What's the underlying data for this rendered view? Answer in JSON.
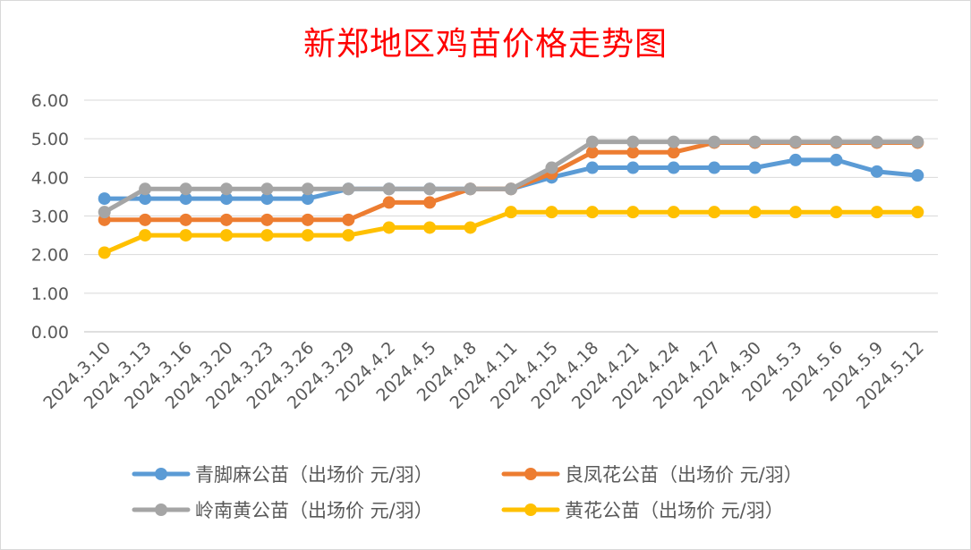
{
  "chart_data": {
    "type": "line",
    "title": "新郑地区鸡苗价格走势图",
    "categories": [
      "2024.3.10",
      "2024.3.13",
      "2024.3.16",
      "2024.3.20",
      "2024.3.23",
      "2024.3.26",
      "2024.3.29",
      "2024.4.2",
      "2024.4.5",
      "2024.4.8",
      "2024.4.11",
      "2024.4.15",
      "2024.4.18",
      "2024.4.21",
      "2024.4.24",
      "2024.4.27",
      "2024.4.30",
      "2024.5.3",
      "2024.5.6",
      "2024.5.9",
      "2024.5.12"
    ],
    "ylim": [
      0,
      6
    ],
    "yticks": [
      "0.00",
      "1.00",
      "2.00",
      "3.00",
      "4.00",
      "5.00",
      "6.00"
    ],
    "grid": true,
    "legend_position": "bottom",
    "series": [
      {
        "name": "青脚麻公苗（出场价 元/羽）",
        "color": "#5b9bd5",
        "values": [
          3.45,
          3.45,
          3.45,
          3.45,
          3.45,
          3.45,
          3.7,
          3.7,
          3.7,
          3.7,
          3.7,
          4.0,
          4.25,
          4.25,
          4.25,
          4.25,
          4.25,
          4.45,
          4.45,
          4.15,
          4.05
        ]
      },
      {
        "name": "良凤花公苗（出场价 元/羽）",
        "color": "#ed7d31",
        "values": [
          2.9,
          2.9,
          2.9,
          2.9,
          2.9,
          2.9,
          2.9,
          3.35,
          3.35,
          3.7,
          3.7,
          4.1,
          4.65,
          4.65,
          4.65,
          4.9,
          4.9,
          4.9,
          4.9,
          4.9,
          4.9
        ]
      },
      {
        "name": "岭南黄公苗（出场价 元/羽）",
        "color": "#a5a5a5",
        "values": [
          3.1,
          3.7,
          3.7,
          3.7,
          3.7,
          3.7,
          3.7,
          3.7,
          3.7,
          3.7,
          3.7,
          4.25,
          4.92,
          4.92,
          4.92,
          4.92,
          4.92,
          4.92,
          4.92,
          4.92,
          4.92
        ]
      },
      {
        "name": "黄花公苗（出场价 元/羽）",
        "color": "#ffc000",
        "values": [
          2.05,
          2.5,
          2.5,
          2.5,
          2.5,
          2.5,
          2.5,
          2.7,
          2.7,
          2.7,
          3.1,
          3.1,
          3.1,
          3.1,
          3.1,
          3.1,
          3.1,
          3.1,
          3.1,
          3.1,
          3.1
        ]
      }
    ]
  }
}
